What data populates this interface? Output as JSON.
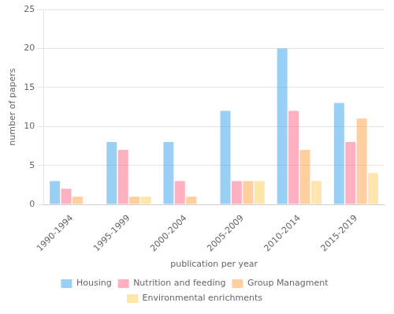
{
  "chart_data": {
    "type": "bar",
    "xlabel": "publication per year",
    "ylabel": "number of papers",
    "categories": [
      "1990-1994",
      "1995-1999",
      "2000-2004",
      "2005-2009",
      "2010-2014",
      "2015-2019"
    ],
    "series": [
      {
        "name": "Housing",
        "values": [
          3,
          8,
          8,
          12,
          20,
          13
        ]
      },
      {
        "name": "Nutrition and feeding",
        "values": [
          2,
          7,
          3,
          3,
          12,
          8
        ]
      },
      {
        "name": "Group Managment",
        "values": [
          1,
          1,
          1,
          3,
          7,
          11
        ]
      },
      {
        "name": "Environmental enrichments",
        "values": [
          0,
          1,
          0,
          3,
          3,
          4
        ]
      }
    ],
    "ylim": [
      0,
      25
    ],
    "yticks": [
      0,
      5,
      10,
      15,
      20,
      25
    ],
    "grid": true,
    "legend": "bottom"
  }
}
